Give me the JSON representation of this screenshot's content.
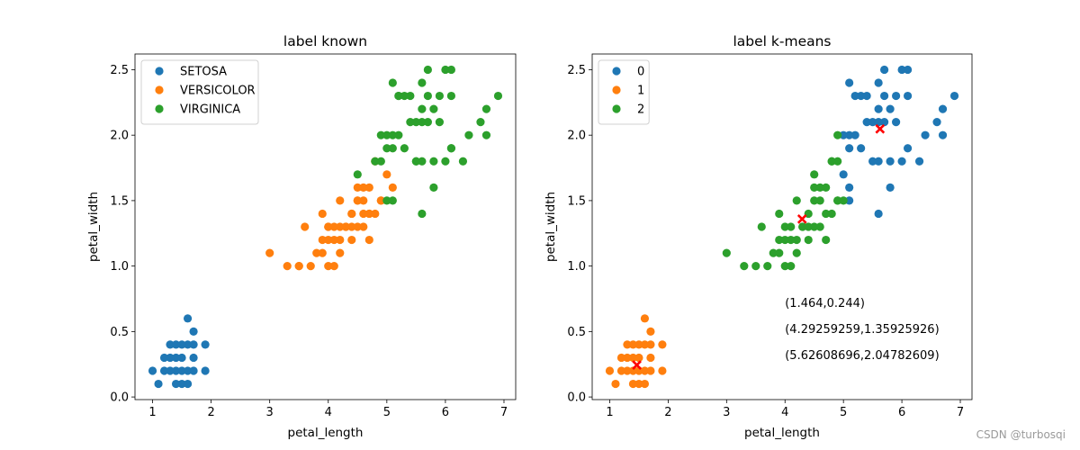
{
  "figure": {
    "watermark": "CSDN @turbosqi"
  },
  "chart_data": [
    {
      "type": "scatter",
      "title": "label known",
      "xlabel": "petal_length",
      "ylabel": "petal_width",
      "xlim": [
        0.7,
        7.2
      ],
      "ylim": [
        -0.02,
        2.62
      ],
      "xticks": [
        "1",
        "2",
        "3",
        "4",
        "5",
        "6",
        "7"
      ],
      "yticks": [
        "0.0",
        "0.5",
        "1.0",
        "1.5",
        "2.0",
        "2.5"
      ],
      "legend_position": "top-left",
      "series": [
        {
          "name": "SETOSA",
          "color": "#1f77b4",
          "points": [
            [
              1.4,
              0.2
            ],
            [
              1.3,
              0.2
            ],
            [
              1.5,
              0.2
            ],
            [
              1.7,
              0.4
            ],
            [
              1.4,
              0.3
            ],
            [
              1.5,
              0.1
            ],
            [
              1.6,
              0.2
            ],
            [
              1.1,
              0.1
            ],
            [
              1.2,
              0.2
            ],
            [
              1.0,
              0.2
            ],
            [
              1.9,
              0.2
            ],
            [
              1.6,
              0.4
            ],
            [
              1.5,
              0.4
            ],
            [
              1.3,
              0.4
            ],
            [
              1.4,
              0.1
            ],
            [
              1.7,
              0.5
            ],
            [
              1.6,
              0.6
            ],
            [
              1.9,
              0.4
            ],
            [
              1.7,
              0.2
            ],
            [
              1.7,
              0.3
            ],
            [
              1.3,
              0.3
            ],
            [
              1.5,
              0.3
            ],
            [
              1.6,
              0.1
            ],
            [
              1.2,
              0.3
            ],
            [
              1.4,
              0.4
            ]
          ]
        },
        {
          "name": "VERSICOLOR",
          "color": "#ff7f0e",
          "points": [
            [
              4.7,
              1.4
            ],
            [
              4.5,
              1.5
            ],
            [
              4.9,
              1.5
            ],
            [
              4.0,
              1.3
            ],
            [
              4.6,
              1.5
            ],
            [
              4.5,
              1.3
            ],
            [
              4.7,
              1.6
            ],
            [
              3.3,
              1.0
            ],
            [
              4.6,
              1.3
            ],
            [
              3.9,
              1.4
            ],
            [
              3.5,
              1.0
            ],
            [
              4.2,
              1.5
            ],
            [
              4.0,
              1.0
            ],
            [
              4.7,
              1.4
            ],
            [
              3.6,
              1.3
            ],
            [
              4.4,
              1.4
            ],
            [
              4.1,
              1.0
            ],
            [
              4.5,
              1.5
            ],
            [
              3.9,
              1.1
            ],
            [
              4.8,
              1.8
            ],
            [
              4.0,
              1.3
            ],
            [
              4.9,
              1.5
            ],
            [
              4.7,
              1.2
            ],
            [
              4.3,
              1.3
            ],
            [
              4.4,
              1.4
            ],
            [
              4.8,
              1.4
            ],
            [
              5.0,
              1.7
            ],
            [
              3.5,
              1.0
            ],
            [
              3.8,
              1.1
            ],
            [
              3.7,
              1.0
            ],
            [
              3.9,
              1.2
            ],
            [
              5.1,
              1.6
            ],
            [
              4.5,
              1.6
            ],
            [
              4.4,
              1.3
            ],
            [
              4.1,
              1.3
            ],
            [
              4.0,
              1.2
            ],
            [
              4.4,
              1.2
            ],
            [
              4.6,
              1.4
            ],
            [
              3.0,
              1.1
            ],
            [
              4.2,
              1.3
            ],
            [
              4.2,
              1.2
            ],
            [
              4.3,
              1.3
            ],
            [
              4.6,
              1.6
            ],
            [
              4.1,
              1.2
            ],
            [
              4.2,
              1.1
            ]
          ]
        },
        {
          "name": "VIRGINICA",
          "color": "#2ca02c",
          "points": [
            [
              6.0,
              2.5
            ],
            [
              5.1,
              1.9
            ],
            [
              5.9,
              2.1
            ],
            [
              5.6,
              1.8
            ],
            [
              5.8,
              2.2
            ],
            [
              6.6,
              2.1
            ],
            [
              4.5,
              1.7
            ],
            [
              6.3,
              1.8
            ],
            [
              5.8,
              1.8
            ],
            [
              6.1,
              2.5
            ],
            [
              5.1,
              2.0
            ],
            [
              5.3,
              1.9
            ],
            [
              5.5,
              2.1
            ],
            [
              5.0,
              2.0
            ],
            [
              5.1,
              2.4
            ],
            [
              5.3,
              2.3
            ],
            [
              5.5,
              1.8
            ],
            [
              6.7,
              2.2
            ],
            [
              6.9,
              2.3
            ],
            [
              5.0,
              1.5
            ],
            [
              5.7,
              2.3
            ],
            [
              4.9,
              2.0
            ],
            [
              6.7,
              2.0
            ],
            [
              4.9,
              1.8
            ],
            [
              5.7,
              2.1
            ],
            [
              6.0,
              1.8
            ],
            [
              4.8,
              1.8
            ],
            [
              5.8,
              1.6
            ],
            [
              6.1,
              1.9
            ],
            [
              6.4,
              2.0
            ],
            [
              5.6,
              2.2
            ],
            [
              5.1,
              1.5
            ],
            [
              5.6,
              1.4
            ],
            [
              6.1,
              2.3
            ],
            [
              5.6,
              2.4
            ],
            [
              5.5,
              1.8
            ],
            [
              5.4,
              2.1
            ],
            [
              5.4,
              2.3
            ],
            [
              5.2,
              2.0
            ],
            [
              5.2,
              2.3
            ],
            [
              5.7,
              2.5
            ],
            [
              5.2,
              2.3
            ],
            [
              5.0,
              1.9
            ],
            [
              5.6,
              2.1
            ],
            [
              5.9,
              2.3
            ],
            [
              6.1,
              1.9
            ]
          ]
        }
      ]
    },
    {
      "type": "scatter",
      "title": "label k-means",
      "xlabel": "petal_length",
      "ylabel": "petal_width",
      "xlim": [
        0.7,
        7.2
      ],
      "ylim": [
        -0.02,
        2.62
      ],
      "xticks": [
        "1",
        "2",
        "3",
        "4",
        "5",
        "6",
        "7"
      ],
      "yticks": [
        "0.0",
        "0.5",
        "1.0",
        "1.5",
        "2.0",
        "2.5"
      ],
      "legend_position": "top-left",
      "series": [
        {
          "name": "0",
          "color": "#1f77b4",
          "points": [
            [
              6.0,
              2.5
            ],
            [
              5.1,
              1.9
            ],
            [
              5.9,
              2.1
            ],
            [
              5.6,
              1.8
            ],
            [
              5.8,
              2.2
            ],
            [
              6.6,
              2.1
            ],
            [
              6.3,
              1.8
            ],
            [
              5.8,
              1.8
            ],
            [
              6.1,
              2.5
            ],
            [
              5.1,
              2.0
            ],
            [
              5.3,
              1.9
            ],
            [
              5.5,
              2.1
            ],
            [
              5.0,
              2.0
            ],
            [
              5.1,
              2.4
            ],
            [
              5.3,
              2.3
            ],
            [
              5.5,
              1.8
            ],
            [
              6.7,
              2.2
            ],
            [
              6.9,
              2.3
            ],
            [
              5.7,
              2.3
            ],
            [
              6.7,
              2.0
            ],
            [
              5.7,
              2.1
            ],
            [
              6.0,
              1.8
            ],
            [
              5.8,
              1.6
            ],
            [
              6.1,
              1.9
            ],
            [
              6.4,
              2.0
            ],
            [
              5.6,
              2.2
            ],
            [
              5.1,
              1.5
            ],
            [
              5.6,
              1.4
            ],
            [
              6.1,
              2.3
            ],
            [
              5.6,
              2.4
            ],
            [
              5.4,
              2.1
            ],
            [
              5.4,
              2.3
            ],
            [
              5.2,
              2.0
            ],
            [
              5.2,
              2.3
            ],
            [
              5.7,
              2.5
            ],
            [
              5.0,
              1.7
            ],
            [
              5.6,
              2.1
            ],
            [
              5.9,
              2.3
            ],
            [
              5.1,
              1.6
            ]
          ]
        },
        {
          "name": "1",
          "color": "#ff7f0e",
          "points": [
            [
              1.4,
              0.2
            ],
            [
              1.3,
              0.2
            ],
            [
              1.5,
              0.2
            ],
            [
              1.7,
              0.4
            ],
            [
              1.4,
              0.3
            ],
            [
              1.5,
              0.1
            ],
            [
              1.6,
              0.2
            ],
            [
              1.1,
              0.1
            ],
            [
              1.2,
              0.2
            ],
            [
              1.0,
              0.2
            ],
            [
              1.9,
              0.2
            ],
            [
              1.6,
              0.4
            ],
            [
              1.5,
              0.4
            ],
            [
              1.3,
              0.4
            ],
            [
              1.4,
              0.1
            ],
            [
              1.7,
              0.5
            ],
            [
              1.6,
              0.6
            ],
            [
              1.9,
              0.4
            ],
            [
              1.7,
              0.2
            ],
            [
              1.7,
              0.3
            ],
            [
              1.3,
              0.3
            ],
            [
              1.5,
              0.3
            ],
            [
              1.6,
              0.1
            ],
            [
              1.2,
              0.3
            ],
            [
              1.4,
              0.4
            ]
          ]
        },
        {
          "name": "2",
          "color": "#2ca02c",
          "points": [
            [
              4.7,
              1.4
            ],
            [
              4.5,
              1.5
            ],
            [
              4.9,
              1.5
            ],
            [
              4.0,
              1.3
            ],
            [
              4.6,
              1.5
            ],
            [
              4.5,
              1.3
            ],
            [
              4.7,
              1.6
            ],
            [
              3.3,
              1.0
            ],
            [
              4.6,
              1.3
            ],
            [
              3.9,
              1.4
            ],
            [
              3.5,
              1.0
            ],
            [
              4.2,
              1.5
            ],
            [
              4.0,
              1.0
            ],
            [
              3.6,
              1.3
            ],
            [
              4.4,
              1.4
            ],
            [
              4.1,
              1.0
            ],
            [
              3.9,
              1.1
            ],
            [
              4.8,
              1.8
            ],
            [
              4.9,
              1.5
            ],
            [
              4.7,
              1.2
            ],
            [
              4.3,
              1.3
            ],
            [
              4.8,
              1.4
            ],
            [
              3.8,
              1.1
            ],
            [
              3.7,
              1.0
            ],
            [
              3.9,
              1.2
            ],
            [
              4.5,
              1.6
            ],
            [
              4.4,
              1.3
            ],
            [
              4.1,
              1.3
            ],
            [
              4.0,
              1.2
            ],
            [
              4.4,
              1.2
            ],
            [
              3.0,
              1.1
            ],
            [
              4.2,
              1.2
            ],
            [
              4.3,
              1.3
            ],
            [
              4.6,
              1.6
            ],
            [
              4.5,
              1.7
            ],
            [
              4.9,
              1.8
            ],
            [
              4.8,
              1.8
            ],
            [
              5.0,
              1.5
            ],
            [
              4.9,
              2.0
            ],
            [
              4.1,
              1.2
            ],
            [
              4.2,
              1.1
            ]
          ]
        }
      ],
      "centroids": {
        "color": "#ff0000",
        "points": [
          [
            1.464,
            0.244
          ],
          [
            4.29259259,
            1.35925926
          ],
          [
            5.62608696,
            2.04782609
          ]
        ]
      },
      "annotations": [
        {
          "text": "(1.464,0.244)",
          "x": 4.0,
          "y": 0.72
        },
        {
          "text": "(4.29259259,1.35925926)",
          "x": 4.0,
          "y": 0.52
        },
        {
          "text": "(5.62608696,2.04782609)",
          "x": 4.0,
          "y": 0.32
        }
      ]
    }
  ]
}
